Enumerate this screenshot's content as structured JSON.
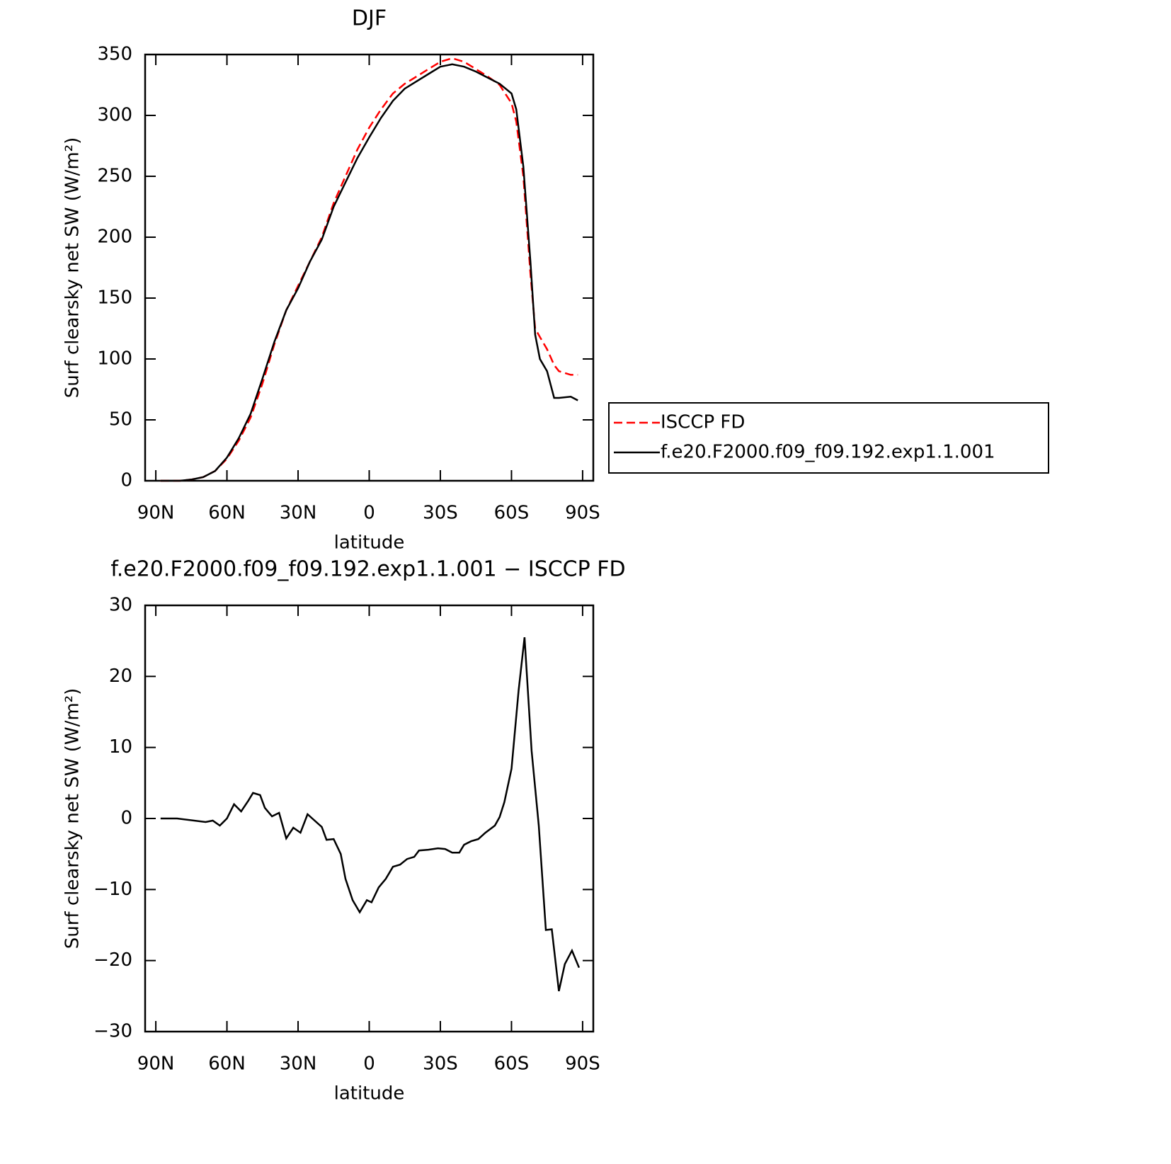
{
  "chart_data": [
    {
      "type": "line",
      "title": "DJF",
      "xlabel": "latitude",
      "ylabel": "Surf clearsky net SW (W/m²)",
      "x": [
        88,
        85,
        80,
        75,
        70,
        65,
        60,
        55,
        50,
        45,
        40,
        35,
        30,
        25,
        20,
        15,
        10,
        5,
        0,
        -5,
        -10,
        -15,
        -20,
        -25,
        -30,
        -35,
        -40,
        -45,
        -50,
        -55,
        -60,
        -62,
        -65,
        -68,
        -70,
        -72,
        -75,
        -78,
        -80,
        -85,
        -88
      ],
      "series": [
        {
          "name": "ISCCP FD",
          "color": "#ff0000",
          "linestyle": "dashed",
          "values": [
            0,
            0,
            0,
            1,
            3,
            8,
            18,
            33,
            52,
            80,
            112,
            140,
            160,
            180,
            200,
            228,
            250,
            272,
            290,
            305,
            318,
            326,
            332,
            338,
            344,
            347,
            344,
            338,
            332,
            325,
            310,
            295,
            250,
            170,
            125,
            118,
            108,
            95,
            90,
            87,
            87
          ]
        },
        {
          "name": "f.e20.F2000.f09_f09.192.exp1.1.001",
          "color": "#000000",
          "linestyle": "solid",
          "values": [
            0,
            0,
            0,
            1,
            3,
            8,
            19,
            35,
            55,
            84,
            114,
            140,
            158,
            180,
            198,
            225,
            245,
            265,
            282,
            298,
            312,
            322,
            328,
            334,
            340,
            342,
            340,
            336,
            331,
            326,
            318,
            305,
            258,
            180,
            120,
            100,
            90,
            68,
            68,
            69,
            66
          ]
        }
      ],
      "xlim": [
        94.5,
        -94.5
      ],
      "ylim": [
        0,
        350
      ],
      "xticks": [
        {
          "value": 90,
          "label": "90N"
        },
        {
          "value": 60,
          "label": "60N"
        },
        {
          "value": 30,
          "label": "30N"
        },
        0,
        {
          "value": -30,
          "label": "30S"
        },
        {
          "value": -60,
          "label": "60S"
        },
        {
          "value": -90,
          "label": "90S"
        }
      ],
      "yticks": [
        0,
        50,
        100,
        150,
        200,
        250,
        300,
        350
      ],
      "legend": "right"
    },
    {
      "type": "line",
      "title": "f.e20.F2000.f09_f09.192.exp1.1.001 − ISCCP FD",
      "xlabel": "latitude",
      "ylabel": "Surf clearsky net SW (W/m²)",
      "x": [
        88,
        81,
        69,
        66,
        63,
        60,
        57,
        54,
        51,
        49,
        46,
        44,
        41,
        38,
        35,
        32,
        29,
        26,
        24,
        20,
        18,
        15,
        12,
        10,
        7,
        4,
        1,
        -1,
        -4,
        -7,
        -10,
        -13,
        -16,
        -19,
        -21,
        -25,
        -29,
        -32,
        -35,
        -38,
        -40,
        -43,
        -46,
        -49,
        -53,
        -55,
        -57,
        -60,
        -63,
        -65.5,
        -68.5,
        -71.5,
        -74.5,
        -77,
        -80,
        -82.5,
        -85.5,
        -88.5
      ],
      "series": [
        {
          "color": "#000000",
          "linestyle": "solid",
          "values": [
            0,
            0,
            -0.5,
            -0.3,
            -1,
            0,
            2,
            1,
            2.5,
            3.6,
            3.3,
            1.5,
            0.3,
            0.8,
            -2.8,
            -1.3,
            -2,
            0.6,
            0,
            -1.2,
            -3,
            -2.9,
            -5,
            -8.5,
            -11.5,
            -13.2,
            -11.5,
            -11.8,
            -9.7,
            -8.5,
            -6.8,
            -6.5,
            -5.7,
            -5.4,
            -4.5,
            -4.4,
            -4.2,
            -4.3,
            -4.8,
            -4.8,
            -3.7,
            -3.2,
            -2.9,
            -2,
            -1,
            0.2,
            2.3,
            7,
            18,
            25.5,
            9.5,
            -1,
            -15.7,
            -15.6,
            -24.3,
            -20.5,
            -18.6,
            -21
          ]
        }
      ],
      "xlim": [
        94.5,
        -94.5
      ],
      "ylim": [
        -30,
        30
      ],
      "xticks": [
        {
          "value": 90,
          "label": "90N"
        },
        {
          "value": 60,
          "label": "60N"
        },
        {
          "value": 30,
          "label": "30N"
        },
        0,
        {
          "value": -30,
          "label": "30S"
        },
        {
          "value": -60,
          "label": "60S"
        },
        {
          "value": -90,
          "label": "90S"
        }
      ],
      "yticks": [
        {
          "value": -30,
          "label": "−30"
        },
        {
          "value": -20,
          "label": "−20"
        },
        {
          "value": -10,
          "label": "−10"
        },
        0,
        10,
        20,
        30
      ]
    }
  ]
}
